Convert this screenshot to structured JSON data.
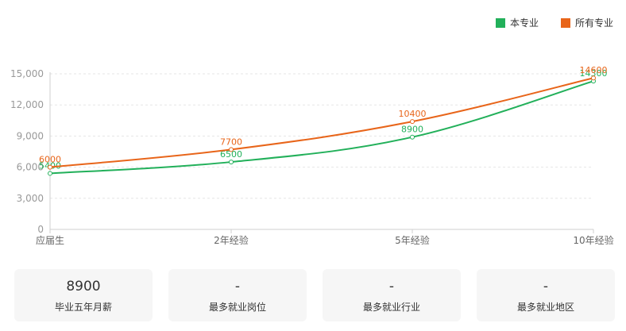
{
  "chart_data": {
    "type": "line",
    "categories": [
      "应届生",
      "2年经验",
      "5年经验",
      "10年经验"
    ],
    "series": [
      {
        "name": "本专业",
        "color": "#22b05a",
        "values": [
          5400,
          6500,
          8900,
          14300
        ]
      },
      {
        "name": "所有专业",
        "color": "#e8651a",
        "values": [
          6000,
          7700,
          10400,
          14600
        ]
      }
    ],
    "ylim": [
      0,
      15000
    ],
    "yticks": [
      0,
      3000,
      6000,
      9000,
      12000,
      15000
    ],
    "ytick_labels": [
      "0",
      "3,000",
      "6,000",
      "9,000",
      "12,000",
      "15,000"
    ],
    "grid": true,
    "legend": "top-right"
  },
  "stats": [
    {
      "value": "8900",
      "label": "毕业五年月薪"
    },
    {
      "value": "-",
      "label": "最多就业岗位"
    },
    {
      "value": "-",
      "label": "最多就业行业"
    },
    {
      "value": "-",
      "label": "最多就业地区"
    }
  ]
}
